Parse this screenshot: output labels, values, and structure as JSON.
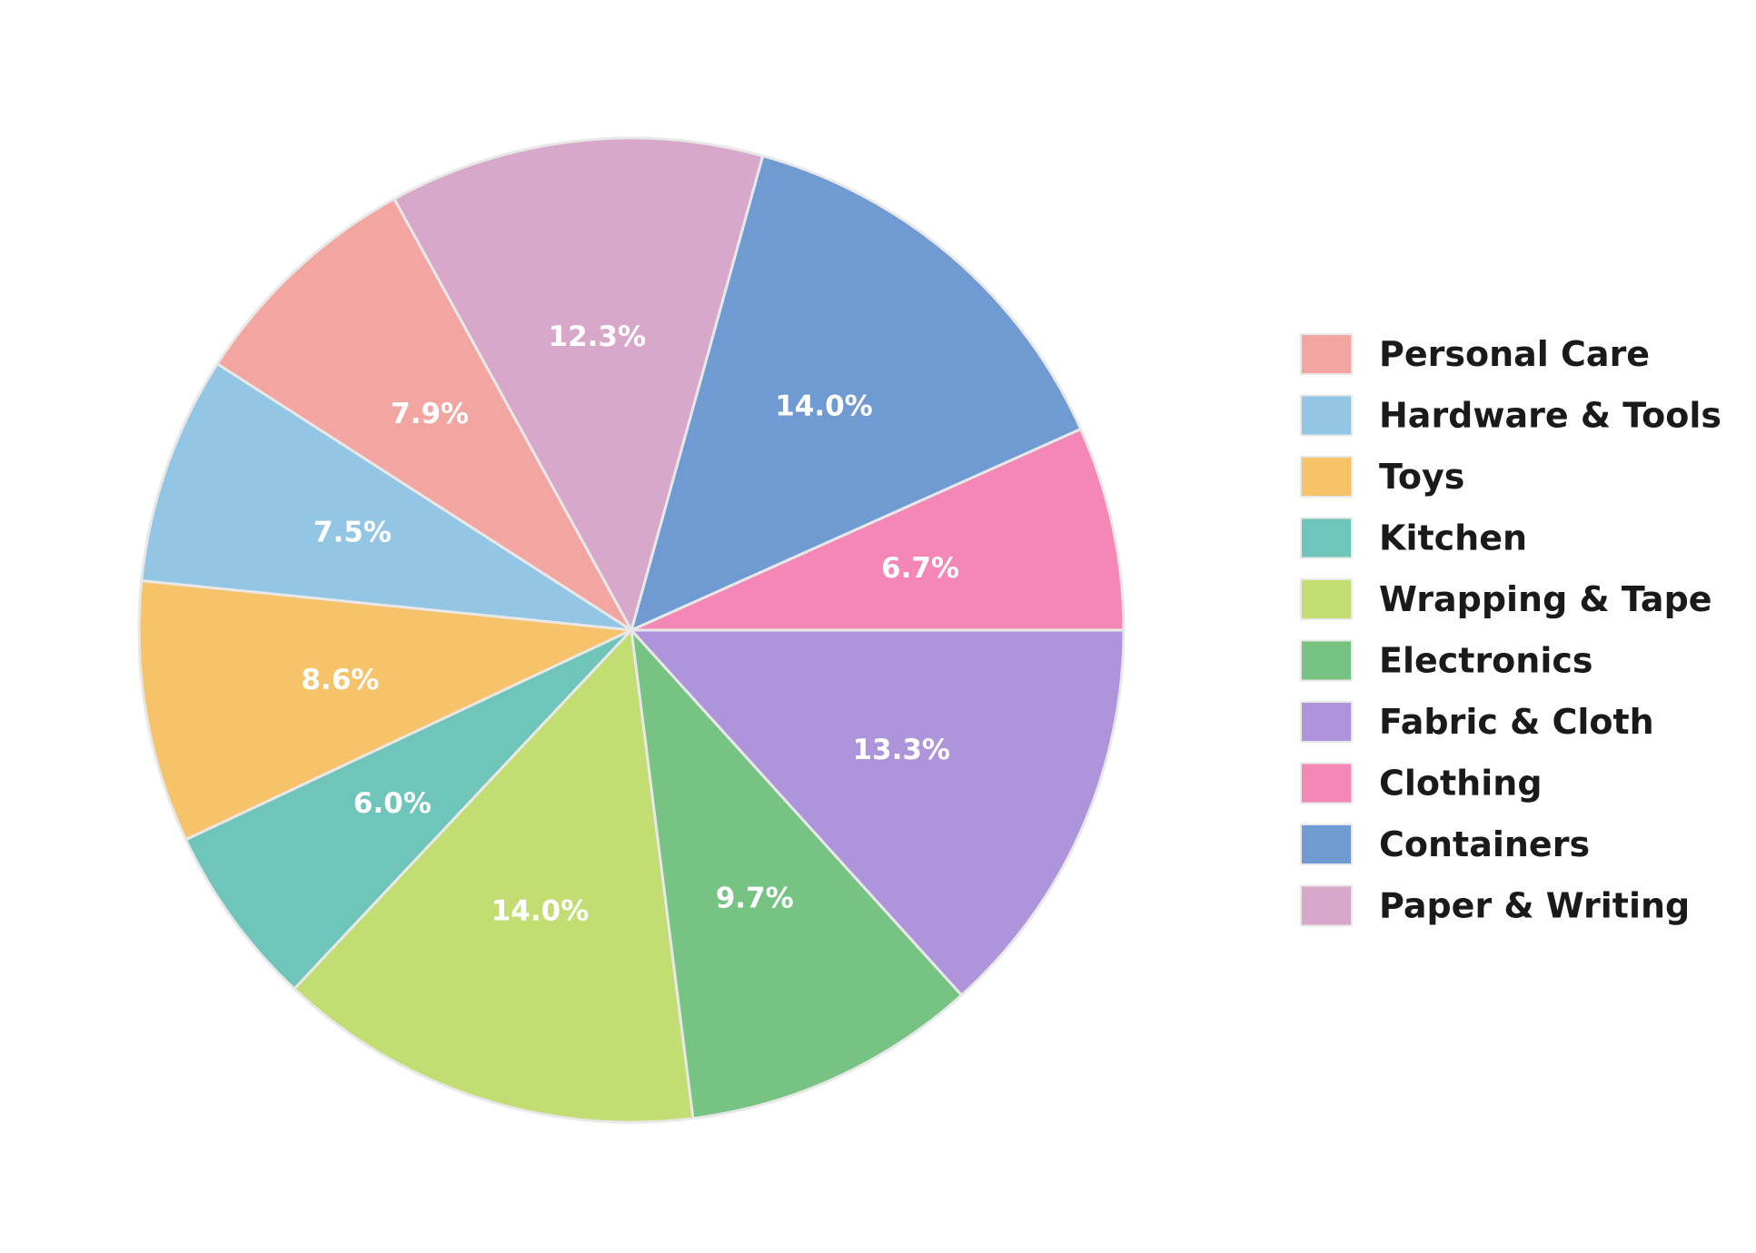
{
  "chart_data": {
    "type": "pie",
    "title": "",
    "start_angle_deg": 0,
    "direction": "counterclockwise",
    "legend_position": "right",
    "slice_border_color": "#e8e8e8",
    "label_color": "#ffffff",
    "slices": [
      {
        "label": "Clothing",
        "value": 6.7,
        "pct_label": "6.7%",
        "color": "#f487b6"
      },
      {
        "label": "Containers",
        "value": 14.0,
        "pct_label": "14.0%",
        "color": "#6f9bd2"
      },
      {
        "label": "Paper & Writing",
        "value": 12.3,
        "pct_label": "12.3%",
        "color": "#d7a8ca"
      },
      {
        "label": "Personal Care",
        "value": 7.9,
        "pct_label": "7.9%",
        "color": "#f2a5a1"
      },
      {
        "label": "Hardware & Tools",
        "value": 7.5,
        "pct_label": "7.5%",
        "color": "#93c6e4"
      },
      {
        "label": "Toys",
        "value": 8.6,
        "pct_label": "8.6%",
        "color": "#f6c36a"
      },
      {
        "label": "Kitchen",
        "value": 6.0,
        "pct_label": "6.0%",
        "color": "#6fc5b9"
      },
      {
        "label": "Wrapping & Tape",
        "value": 14.0,
        "pct_label": "14.0%",
        "color": "#c2dd71"
      },
      {
        "label": "Electronics",
        "value": 9.7,
        "pct_label": "9.7%",
        "color": "#77c384"
      },
      {
        "label": "Fabric & Cloth",
        "value": 13.3,
        "pct_label": "13.3%",
        "color": "#ad94db"
      }
    ],
    "legend_order": [
      "Personal Care",
      "Hardware & Tools",
      "Toys",
      "Kitchen",
      "Wrapping & Tape",
      "Electronics",
      "Fabric & Cloth",
      "Clothing",
      "Containers",
      "Paper & Writing"
    ]
  }
}
